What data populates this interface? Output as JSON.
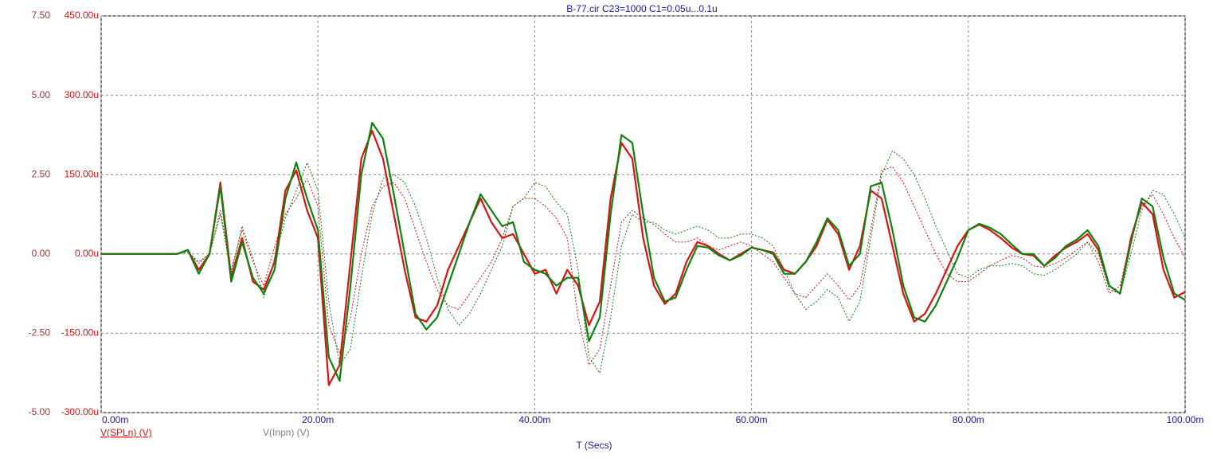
{
  "chart_data": {
    "type": "line",
    "title": "B-77.cir C23=1000 C1=0.05u...0.1u",
    "xlabel": "T (Secs)",
    "title_color": "#1a1aa0",
    "xtick_color": "#1a1aa0",
    "ytick_color": "#a83232",
    "y2tick_color": "#e01010",
    "grid": true,
    "xlim": [
      0,
      0.1
    ],
    "xticks": [
      {
        "value": 0,
        "label": "0.00m"
      },
      {
        "value": 0.02,
        "label": "20.00m"
      },
      {
        "value": 0.04,
        "label": "40.00m"
      },
      {
        "value": 0.06,
        "label": "60.00m"
      },
      {
        "value": 0.08,
        "label": "80.00m"
      },
      {
        "value": 0.1,
        "label": "100.00m"
      }
    ],
    "ylim": [
      -5,
      7.5
    ],
    "yticks": [
      {
        "value": -5,
        "label": "-5.00"
      },
      {
        "value": -2.5,
        "label": "-2.50"
      },
      {
        "value": 0,
        "label": "0.00"
      },
      {
        "value": 2.5,
        "label": "2.50"
      },
      {
        "value": 5,
        "label": "5.00"
      },
      {
        "value": 7.5,
        "label": "7.50"
      }
    ],
    "y2lim": [
      -0.0003,
      0.00045
    ],
    "y2ticks": [
      {
        "value": -0.0003,
        "label": "-300.00u"
      },
      {
        "value": -0.00015,
        "label": "-150.00u"
      },
      {
        "value": 0,
        "label": "0.00u"
      },
      {
        "value": 0.00015,
        "label": "150.00u"
      },
      {
        "value": 0.0003,
        "label": "300.00u"
      },
      {
        "value": 0.00045,
        "label": "450.00u"
      }
    ],
    "legend": [
      {
        "name": "V(SPLn) (V)",
        "color": "#e01010"
      },
      {
        "name": "V(Inpn) (V)",
        "color": "#808080"
      }
    ],
    "x": [
      0,
      0.001,
      0.002,
      0.003,
      0.004,
      0.005,
      0.006,
      0.007,
      0.008,
      0.009,
      0.01,
      0.011,
      0.012,
      0.013,
      0.014,
      0.015,
      0.016,
      0.017,
      0.018,
      0.019,
      0.02,
      0.021,
      0.022,
      0.023,
      0.024,
      0.025,
      0.026,
      0.027,
      0.028,
      0.029,
      0.03,
      0.031,
      0.032,
      0.033,
      0.034,
      0.035,
      0.036,
      0.037,
      0.038,
      0.039,
      0.04,
      0.041,
      0.042,
      0.043,
      0.044,
      0.045,
      0.046,
      0.047,
      0.048,
      0.049,
      0.05,
      0.051,
      0.052,
      0.053,
      0.054,
      0.055,
      0.056,
      0.057,
      0.058,
      0.059,
      0.06,
      0.061,
      0.062,
      0.063,
      0.064,
      0.065,
      0.066,
      0.067,
      0.068,
      0.069,
      0.07,
      0.071,
      0.072,
      0.073,
      0.074,
      0.075,
      0.076,
      0.077,
      0.078,
      0.079,
      0.08,
      0.081,
      0.082,
      0.083,
      0.084,
      0.085,
      0.086,
      0.087,
      0.088,
      0.089,
      0.09,
      0.091,
      0.092,
      0.093,
      0.094,
      0.095,
      0.096,
      0.097,
      0.098,
      0.099,
      0.1
    ],
    "series": [
      {
        "color": "#e01010",
        "axis": "y2",
        "width": 2.2,
        "dash": "none",
        "values": [
          0,
          0,
          0,
          0,
          0,
          0,
          0,
          0,
          7.5e-06,
          -3e-05,
          0,
          0.000135,
          -4.5e-05,
          3e-05,
          -5.25e-05,
          -6.75e-05,
          -1.5e-05,
          0.00012,
          0.000158,
          8.25e-05,
          3e-05,
          -0.000248,
          -0.00021,
          -1.5e-05,
          0.00018,
          0.000233,
          0.00018,
          7.5e-05,
          -3e-05,
          -0.00012,
          -0.000128,
          -9.75e-05,
          -3e-05,
          1.5e-05,
          6e-05,
          0.000105,
          6e-05,
          3e-05,
          3.75e-05,
          0,
          -3.75e-05,
          -3e-05,
          -7.5e-05,
          -3e-05,
          -6e-05,
          -0.000135,
          -9e-05,
          0.000105,
          0.00021,
          0.00018,
          3e-05,
          -6e-05,
          -9.45e-05,
          -7.5e-05,
          -1.5e-05,
          2.25e-05,
          1.5e-05,
          0,
          -1.2e-05,
          0,
          1.2e-05,
          7.5e-06,
          3e-06,
          -3e-05,
          -3.75e-05,
          -1.5e-05,
          1.5e-05,
          6.45e-05,
          3.75e-05,
          -3e-05,
          1.5e-05,
          0.00012,
          0.000105,
          1.5e-05,
          -7.5e-05,
          -0.000128,
          -0.000113,
          -7.5e-05,
          -3e-05,
          1.5e-05,
          4.5e-05,
          5.55e-05,
          4.5e-05,
          3e-05,
          1.2e-05,
          0,
          -3e-06,
          -2.25e-05,
          -3e-06,
          1.2e-05,
          2.25e-05,
          3.75e-05,
          7.5e-06,
          -6e-05,
          -7.5e-05,
          3e-05,
          9.75e-05,
          7.5e-05,
          -3e-05,
          -8.25e-05,
          -7.2e-05
        ]
      },
      {
        "color": "#108010",
        "axis": "y2",
        "width": 2.2,
        "dash": "none",
        "values": [
          0,
          0,
          0,
          0,
          0,
          0,
          0,
          0,
          7.5e-06,
          -3.75e-05,
          0,
          0.000128,
          -5.25e-05,
          2.25e-05,
          -4.5e-05,
          -7.5e-05,
          -3e-05,
          0.000105,
          0.000173,
          0.000105,
          4.5e-05,
          -0.000195,
          -0.00024,
          -6e-05,
          0.00015,
          0.000248,
          0.000218,
          0.000113,
          0,
          -0.000113,
          -0.000143,
          -0.00012,
          -6e-05,
          0,
          6e-05,
          0.000113,
          8.25e-05,
          5.25e-05,
          6e-05,
          -1.5e-05,
          -3e-05,
          -3.75e-05,
          -6e-05,
          -4.5e-05,
          -4.5e-05,
          -0.000165,
          -0.00012,
          7.5e-05,
          0.000225,
          0.00021,
          7.5e-05,
          -4.5e-05,
          -9e-05,
          -8.25e-05,
          -3e-05,
          1.5e-05,
          1.2e-05,
          -3e-06,
          -1.2e-05,
          -3e-06,
          1.2e-05,
          7.5e-06,
          0,
          -3.75e-05,
          -3.75e-05,
          -1.5e-05,
          2.25e-05,
          6.75e-05,
          4.5e-05,
          -2.25e-05,
          0,
          0.000128,
          0.000135,
          4.5e-05,
          -6e-05,
          -0.00012,
          -0.000128,
          -9.75e-05,
          -5.25e-05,
          -7.5e-06,
          4.5e-05,
          5.7e-05,
          4.95e-05,
          3.75e-05,
          1.8e-05,
          0,
          0,
          -2.25e-05,
          -7.5e-06,
          1.5e-05,
          2.7e-05,
          4.5e-05,
          1.5e-05,
          -6e-05,
          -7.5e-05,
          2.25e-05,
          0.000105,
          9e-05,
          -7.5e-06,
          -7.5e-05,
          -8.7e-05
        ]
      },
      {
        "color": "#e01010",
        "axis": "y",
        "width": 1,
        "dash": "2,2",
        "values": [
          0,
          0,
          0,
          0,
          0,
          0,
          0,
          0,
          0.05,
          -0.25,
          0,
          1.375,
          -0.5,
          0.75,
          -0.25,
          -1,
          0.25,
          1.25,
          1.75,
          2.375,
          1.5,
          -2.25,
          -3.125,
          -2,
          0,
          1.5,
          2.125,
          2.25,
          1.75,
          0.75,
          -0.25,
          -1.125,
          -1.625,
          -1.75,
          -1.25,
          -0.75,
          -0.25,
          0.5,
          1.5,
          1.75,
          1.75,
          1.5,
          1.125,
          0.5,
          -2,
          -3.5,
          -3,
          -1,
          1,
          1.375,
          1.125,
          0.925,
          0.625,
          0.375,
          0.375,
          0.5,
          0.25,
          0.125,
          0.25,
          0.375,
          0.25,
          0,
          -0.25,
          -0.75,
          -1.25,
          -1.375,
          -1,
          -0.625,
          -1,
          -1.45,
          -1,
          0.75,
          2.625,
          2.75,
          2.25,
          1.5,
          0.75,
          0,
          -0.625,
          -0.875,
          -0.875,
          -0.625,
          -0.375,
          -0.2,
          -0.05,
          -0.125,
          -0.375,
          -0.425,
          -0.3,
          -0.125,
          0.125,
          0.375,
          -0.25,
          -1.25,
          -1,
          0.5,
          1.5,
          1.875,
          1.25,
          0.5,
          -0.125
        ]
      },
      {
        "color": "#108010",
        "axis": "y",
        "width": 1,
        "dash": "2,2",
        "values": [
          0,
          0,
          0,
          0,
          0,
          0,
          0,
          0,
          0.05,
          -0.3,
          0,
          1.25,
          -0.625,
          0.875,
          -0.125,
          -1.375,
          -0.125,
          1.125,
          2,
          2.875,
          2,
          -1.5,
          -3.5,
          -3,
          -0.75,
          1.25,
          2.375,
          2.5,
          2.25,
          1.5,
          0.5,
          -0.75,
          -1.75,
          -2.25,
          -1.875,
          -1.25,
          -0.5,
          0.25,
          1.5,
          1.75,
          2.25,
          2.125,
          1.625,
          1.25,
          -0.5,
          -3.25,
          -3.75,
          -2,
          0.25,
          1.25,
          1,
          1,
          0.75,
          0.625,
          0.75,
          0.875,
          0.75,
          0.5,
          0.5,
          0.625,
          0.625,
          0.5,
          0.25,
          -0.5,
          -1.25,
          -1.75,
          -1.5,
          -1.125,
          -1.375,
          -2.125,
          -1.5,
          0.5,
          2.5,
          3.25,
          3,
          2.5,
          1.75,
          0.875,
          0.125,
          -0.625,
          -0.75,
          -0.5,
          -0.375,
          -0.375,
          -0.3,
          -0.375,
          -0.625,
          -0.675,
          -0.5,
          -0.25,
          0,
          0.375,
          0,
          -1.125,
          -1.25,
          0,
          1.375,
          2,
          1.875,
          1.25,
          0.5
        ]
      }
    ]
  }
}
